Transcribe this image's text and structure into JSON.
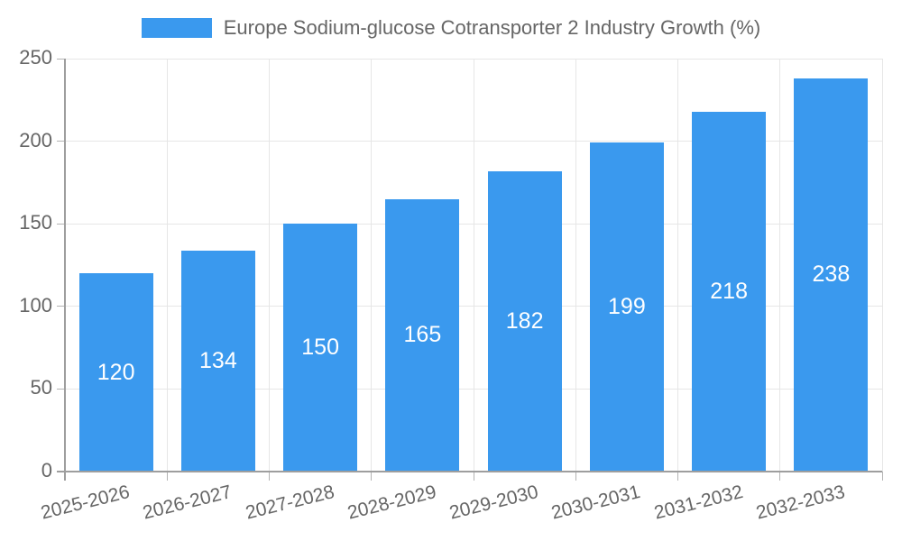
{
  "chart_data": {
    "type": "bar",
    "title": "Europe Sodium-glucose Cotransporter 2 Industry Growth (%)",
    "categories": [
      "2025-2026",
      "2026-2027",
      "2027-2028",
      "2028-2029",
      "2029-2030",
      "2030-2031",
      "2031-2032",
      "2032-2033"
    ],
    "values": [
      120,
      134,
      150,
      165,
      182,
      199,
      218,
      238
    ],
    "xlabel": "",
    "ylabel": "",
    "ylim": [
      0,
      250
    ],
    "yticks": [
      0,
      50,
      100,
      150,
      200,
      250
    ],
    "grid": true,
    "legend_position": "top-center",
    "value_labels": "inside-center-white",
    "colors": {
      "bar": "#3a99ee",
      "bar_value_text": "#ffffff",
      "axis_text": "#666666",
      "gridline": "#e6e6e6",
      "axis_line": "#9e9e9e",
      "tick_line": "#b3b3b3",
      "background": "#ffffff"
    }
  }
}
